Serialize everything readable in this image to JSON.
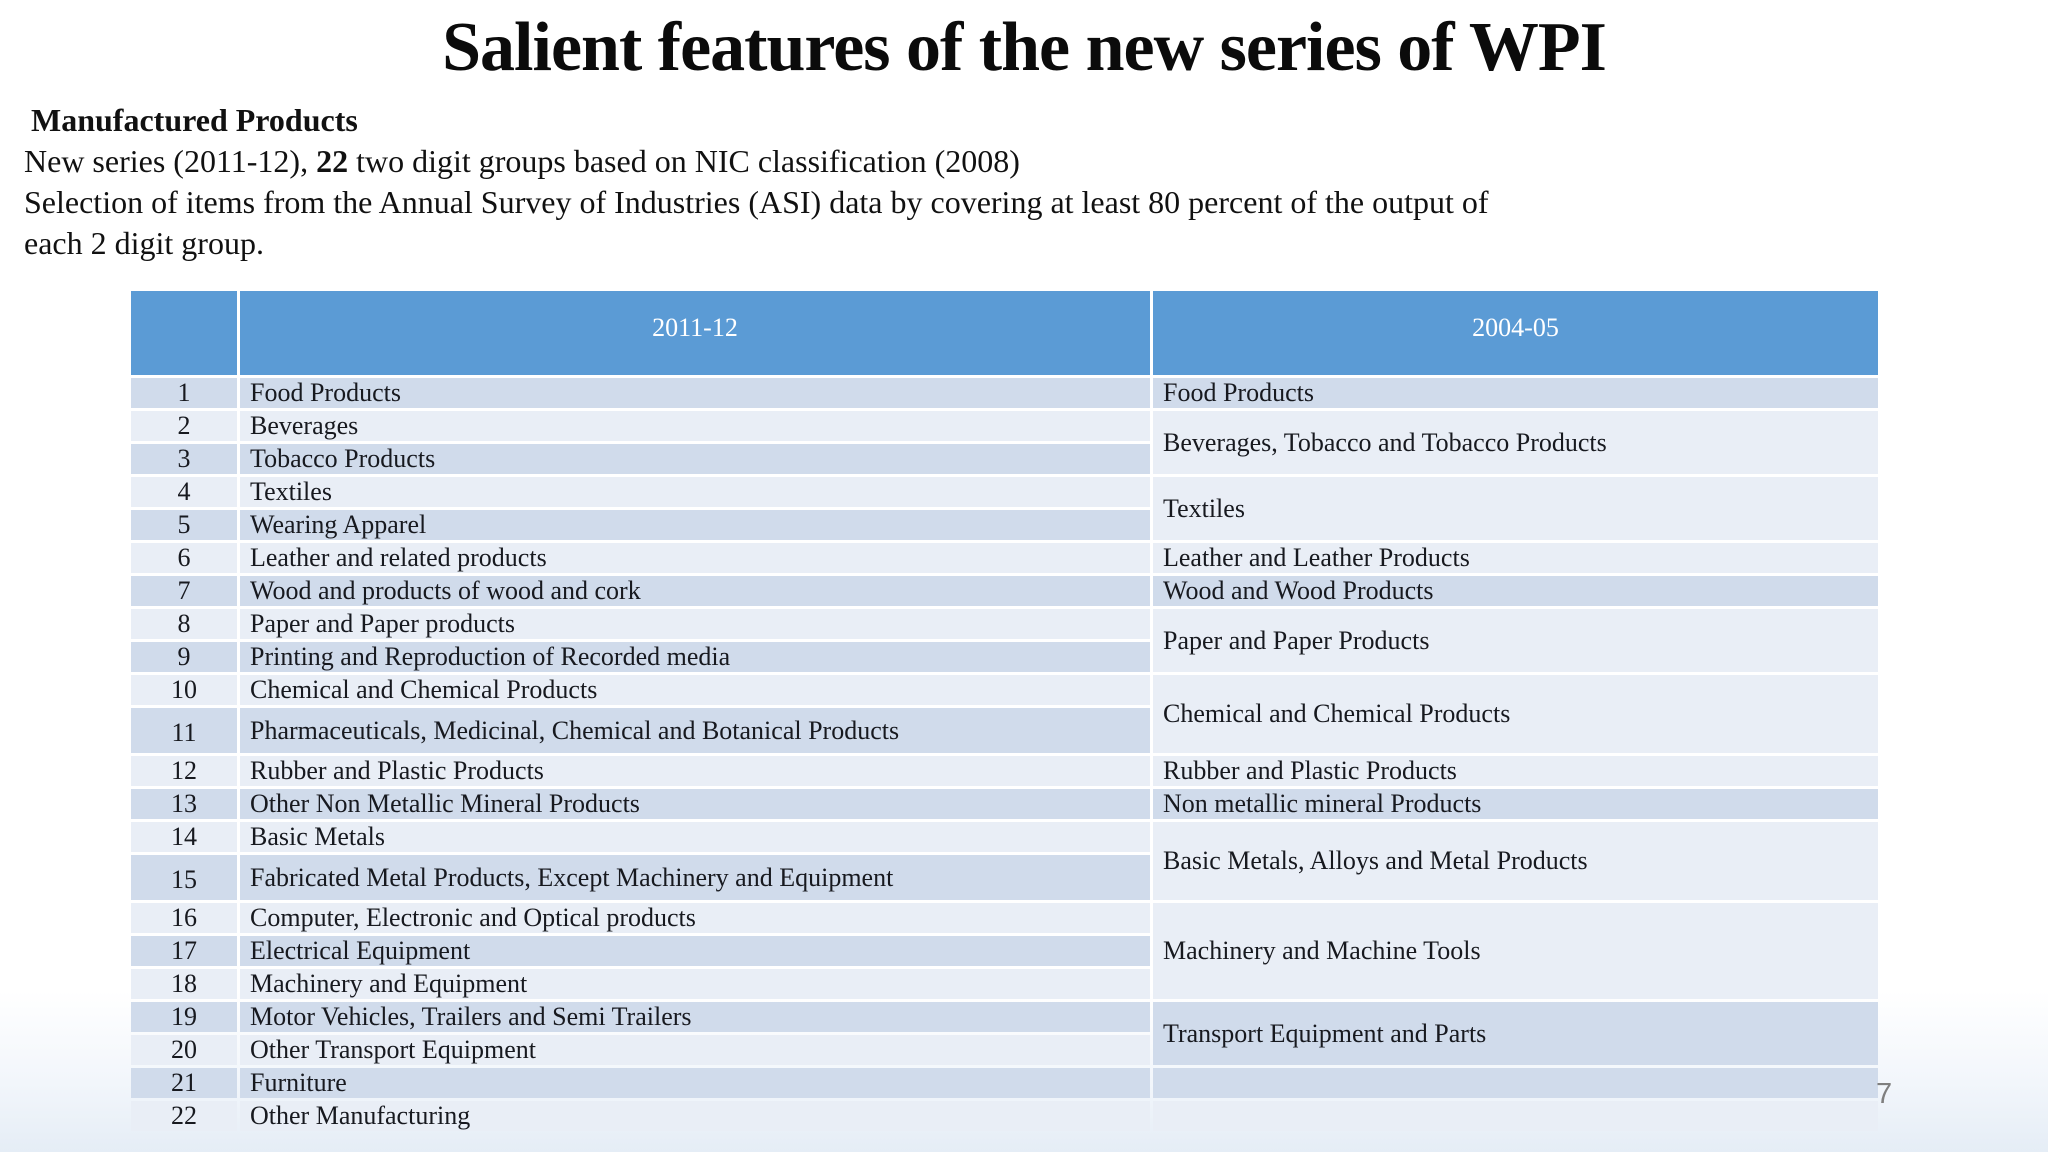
{
  "slide": {
    "title": "Salient features of the new series of WPI",
    "heading": "Manufactured Products",
    "line1_pre": "New series (2011-12), ",
    "line1_bold": "22",
    "line1_post": " two digit groups based on NIC classification (2008)",
    "line2": "Selection of items from the Annual Survey of Industries (ASI) data by  covering at least 80 percent of the output of",
    "line3": "each 2 digit group.",
    "page_number": "7"
  },
  "table": {
    "header": {
      "index_label": "",
      "new_series_label": "2011-12",
      "old_series_label": "2004-05"
    },
    "rows": [
      {
        "num": "1",
        "item": "Food Products",
        "shade": "dark",
        "tall": false,
        "bold": false
      },
      {
        "num": "2",
        "item": "Beverages",
        "shade": "light",
        "tall": false,
        "bold": false
      },
      {
        "num": "3",
        "item": "Tobacco Products",
        "shade": "dark",
        "tall": false,
        "bold": false
      },
      {
        "num": "4",
        "item": "Textiles",
        "shade": "light",
        "tall": false,
        "bold": false
      },
      {
        "num": "5",
        "item": "Wearing Apparel",
        "shade": "dark",
        "tall": false,
        "bold": false
      },
      {
        "num": "6",
        "item": "Leather and related products",
        "shade": "light",
        "tall": false,
        "bold": false
      },
      {
        "num": "7",
        "item": "Wood and products of wood and cork",
        "shade": "dark",
        "tall": false,
        "bold": false
      },
      {
        "num": "8",
        "item": "Paper and Paper products",
        "shade": "light",
        "tall": false,
        "bold": false
      },
      {
        "num": "9",
        "item": "Printing and Reproduction of Recorded media",
        "shade": "dark",
        "tall": false,
        "bold": false
      },
      {
        "num": "10",
        "item": "Chemical and Chemical Products",
        "shade": "light",
        "tall": false,
        "bold": false
      },
      {
        "num": "11",
        "item": "Pharmaceuticals, Medicinal, Chemical and Botanical Products",
        "shade": "dark",
        "tall": true,
        "bold": false
      },
      {
        "num": "12",
        "item": "Rubber and Plastic Products",
        "shade": "light",
        "tall": false,
        "bold": false
      },
      {
        "num": "13",
        "item": "Other Non Metallic Mineral Products",
        "shade": "dark",
        "tall": false,
        "bold": false
      },
      {
        "num": "14",
        "item": "Basic Metals",
        "shade": "light",
        "tall": false,
        "bold": false
      },
      {
        "num": "15",
        "item": "Fabricated Metal Products, Except Machinery and Equipment",
        "shade": "dark",
        "tall": true,
        "bold": false
      },
      {
        "num": "16",
        "item": "Computer, Electronic and Optical products",
        "shade": "light",
        "tall": false,
        "bold": false
      },
      {
        "num": "17",
        "item": "Electrical Equipment",
        "shade": "dark",
        "tall": false,
        "bold": false
      },
      {
        "num": "18",
        "item": "Machinery and Equipment",
        "shade": "light",
        "tall": false,
        "bold": false
      },
      {
        "num": "19",
        "item": "Motor Vehicles, Trailers and Semi Trailers",
        "shade": "dark",
        "tall": false,
        "bold": false
      },
      {
        "num": "20",
        "item": "Other Transport Equipment",
        "shade": "light",
        "tall": false,
        "bold": false
      },
      {
        "num": "21",
        "item": "Furniture",
        "shade": "dark",
        "tall": false,
        "bold": true
      },
      {
        "num": "22",
        "item": "Other Manufacturing",
        "shade": "light",
        "tall": false,
        "bold": true
      }
    ],
    "old_series_cells": [
      {
        "row": 1,
        "span": 1,
        "label": "Food Products",
        "shade": "dark"
      },
      {
        "row": 2,
        "span": 2,
        "label": "Beverages, Tobacco and Tobacco Products",
        "shade": "light"
      },
      {
        "row": 4,
        "span": 2,
        "label": "Textiles",
        "shade": "light"
      },
      {
        "row": 6,
        "span": 1,
        "label": "Leather and Leather Products",
        "shade": "light"
      },
      {
        "row": 7,
        "span": 1,
        "label": "Wood and Wood Products",
        "shade": "dark"
      },
      {
        "row": 8,
        "span": 2,
        "label": "Paper and Paper Products",
        "shade": "light"
      },
      {
        "row": 10,
        "span": 2,
        "label": "Chemical and Chemical Products",
        "shade": "light"
      },
      {
        "row": 12,
        "span": 1,
        "label": "Rubber and Plastic Products",
        "shade": "light"
      },
      {
        "row": 13,
        "span": 1,
        "label": "Non metallic  mineral Products",
        "shade": "dark"
      },
      {
        "row": 14,
        "span": 2,
        "label": "Basic Metals, Alloys and Metal Products",
        "shade": "light"
      },
      {
        "row": 16,
        "span": 3,
        "label": "Machinery and Machine Tools",
        "shade": "light"
      },
      {
        "row": 19,
        "span": 2,
        "label": "Transport Equipment and Parts",
        "shade": "dark"
      },
      {
        "row": 21,
        "span": 1,
        "label": "",
        "shade": "dark"
      },
      {
        "row": 22,
        "span": 1,
        "label": "",
        "shade": "light"
      }
    ]
  },
  "colors": {
    "header_blue": "#5b9bd5",
    "band_dark": "#d0dbeb",
    "band_light": "#e9eef6",
    "header_text": "#ffffff",
    "body_text": "#17191f",
    "page_number_gray": "#7f7f7f"
  }
}
